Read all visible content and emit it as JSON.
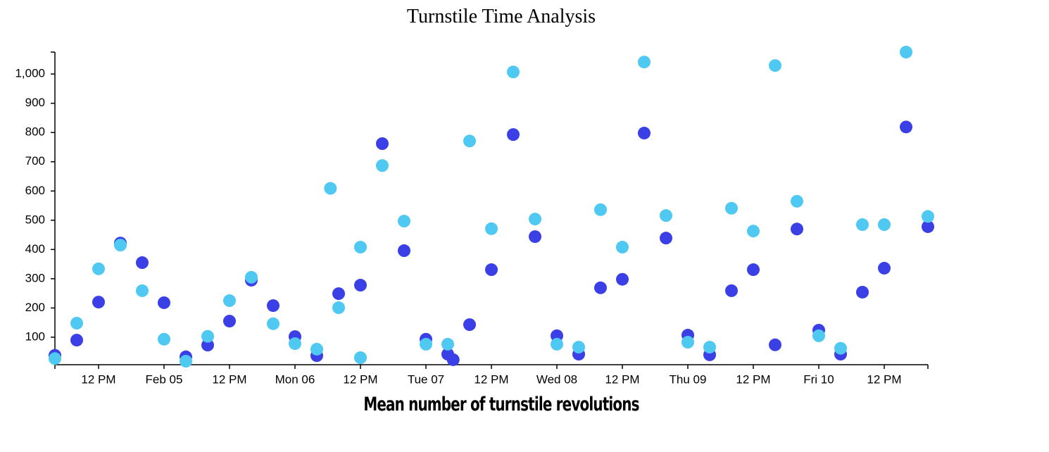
{
  "chart_data": {
    "type": "scatter",
    "title": "Turnstile Time Analysis",
    "x_label": "Mean number of turnstile revolutions",
    "xlim": [
      "02-04 04:00",
      "02-10 20:00"
    ],
    "xticks": [
      {
        "value": "02-04 12:00",
        "label": "12 PM"
      },
      {
        "value": "02-05 00:00",
        "label": "Feb 05"
      },
      {
        "value": "02-05 12:00",
        "label": "12 PM"
      },
      {
        "value": "02-06 00:00",
        "label": "Mon 06"
      },
      {
        "value": "02-06 12:00",
        "label": "12 PM"
      },
      {
        "value": "02-07 00:00",
        "label": "Tue 07"
      },
      {
        "value": "02-07 12:00",
        "label": "12 PM"
      },
      {
        "value": "02-08 00:00",
        "label": "Wed 08"
      },
      {
        "value": "02-08 12:00",
        "label": "12 PM"
      },
      {
        "value": "02-09 00:00",
        "label": "Thu 09"
      },
      {
        "value": "02-09 12:00",
        "label": "12 PM"
      },
      {
        "value": "02-10 00:00",
        "label": "Fri 10"
      },
      {
        "value": "02-10 12:00",
        "label": "12 PM"
      }
    ],
    "ylim": [
      6,
      1075
    ],
    "yticks": [
      100,
      200,
      300,
      400,
      500,
      600,
      700,
      800,
      900,
      {
        "value": 1000,
        "label": "1,000"
      }
    ],
    "series": [
      {
        "color": "#3a3fe6",
        "x": [
          "02-04 04:00",
          "02-04 08:00",
          "02-04 12:00",
          "02-04 16:00",
          "02-04 20:00",
          "02-05 00:00",
          "02-05 04:00",
          "02-05 08:00",
          "02-05 12:00",
          "02-05 16:00",
          "02-05 20:00",
          "02-06 00:00",
          "02-06 04:00",
          "02-06 08:00",
          "02-06 12:00",
          "02-06 16:00",
          "02-06 20:00",
          "02-07 00:00",
          "02-07 04:00",
          "02-07 05:00",
          "02-07 08:00",
          "02-07 12:00",
          "02-07 16:00",
          "02-07 20:00",
          "02-08 00:00",
          "02-08 04:00",
          "02-08 08:00",
          "02-08 12:00",
          "02-08 16:00",
          "02-08 20:00",
          "02-09 00:00",
          "02-09 04:00",
          "02-09 08:00",
          "02-09 12:00",
          "02-09 16:00",
          "02-09 20:00",
          "02-10 00:00",
          "02-10 04:00",
          "02-10 08:00",
          "02-10 12:00",
          "02-10 16:00",
          "02-10 20:00"
        ],
        "values": [
          38,
          90,
          220,
          422,
          355,
          218,
          33,
          73,
          155,
          295,
          208,
          102,
          37,
          249,
          278,
          762,
          396,
          93,
          42,
          23,
          143,
          331,
          793,
          444,
          105,
          42,
          269,
          298,
          798,
          439,
          107,
          40,
          259,
          331,
          74,
          470,
          124,
          42,
          254,
          336,
          819,
          478
        ]
      },
      {
        "color": "#4fc9f1",
        "x": [
          "02-04 04:00",
          "02-04 08:00",
          "02-04 12:00",
          "02-04 16:00",
          "02-04 20:00",
          "02-05 00:00",
          "02-05 04:00",
          "02-05 08:00",
          "02-05 12:00",
          "02-05 16:00",
          "02-05 20:00",
          "02-06 00:00",
          "02-06 04:00",
          "02-06 06:30",
          "02-06 08:00",
          "02-06 12:00",
          "02-06 12:00",
          "02-06 16:00",
          "02-06 20:00",
          "02-07 00:00",
          "02-07 04:00",
          "02-07 08:00",
          "02-07 12:00",
          "02-07 16:00",
          "02-07 20:00",
          "02-08 00:00",
          "02-08 04:00",
          "02-08 08:00",
          "02-08 12:00",
          "02-08 16:00",
          "02-08 20:00",
          "02-09 00:00",
          "02-09 04:00",
          "02-09 08:00",
          "02-09 12:00",
          "02-09 16:00",
          "02-09 20:00",
          "02-10 00:00",
          "02-10 04:00",
          "02-10 08:00",
          "02-10 12:00",
          "02-10 16:00",
          "02-10 20:00"
        ],
        "values": [
          27,
          148,
          334,
          415,
          259,
          93,
          18,
          103,
          225,
          305,
          146,
          78,
          59,
          609,
          201,
          408,
          30,
          687,
          497,
          76,
          76,
          771,
          471,
          1007,
          504,
          76,
          66,
          536,
          408,
          1041,
          516,
          83,
          66,
          541,
          463,
          1029,
          565,
          105,
          62,
          485,
          485,
          1075,
          513
        ]
      }
    ]
  }
}
